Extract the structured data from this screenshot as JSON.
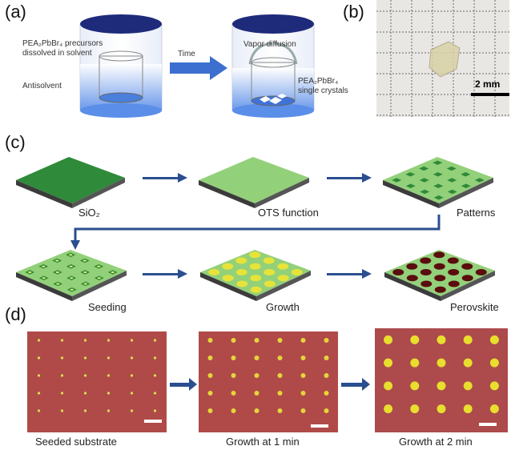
{
  "panel_a": {
    "label": "(a)",
    "precursor_text": "PEA₂PbBr₄ precursors dissolved in solvent",
    "antisolvent_text": "Antisolvent",
    "time_text": "Time",
    "vapor_text": "Vapor diffusion",
    "crystals_text": "PEA₂PbBr₄ single crystals"
  },
  "panel_b": {
    "label": "(b)",
    "scale_text": "2 mm"
  },
  "panel_c": {
    "label": "(c)",
    "steps": [
      "SiO₂",
      "OTS function",
      "Patterns",
      "Seeding",
      "Growth",
      "Perovskite"
    ]
  },
  "panel_d": {
    "label": "(d)",
    "captions": [
      "Seeded substrate",
      "Growth at 1 min",
      "Growth at 2 min"
    ]
  },
  "colors": {
    "dark_green": "#2f8a3a",
    "light_green": "#93d07a",
    "substrate_side": "#3b3b3b",
    "arrow_blue": "#2a4e8f",
    "crystal_yellow": "#e6e33a",
    "perovskite_dark": "#5a0d0d",
    "micro_bg": "#b04a48"
  }
}
